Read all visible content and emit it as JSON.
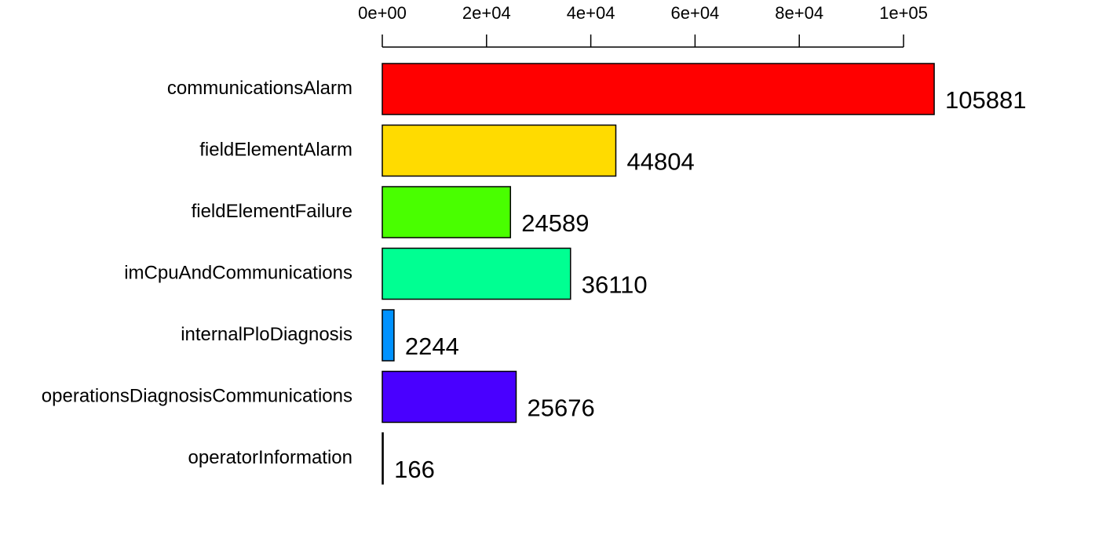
{
  "chart_data": {
    "type": "bar",
    "orientation": "horizontal",
    "categories": [
      "communicationsAlarm",
      "fieldElementAlarm",
      "fieldElementFailure",
      "imCpuAndCommunications",
      "internalPloDiagnosis",
      "operationsDiagnosisCommunications",
      "operatorInformation"
    ],
    "values": [
      105881,
      44804,
      24589,
      36110,
      2244,
      25676,
      166
    ],
    "value_labels": [
      "105881",
      "44804",
      "24589",
      "36110",
      "2244",
      "25676",
      "166"
    ],
    "colors": [
      "#FF0000",
      "#FFDB00",
      "#49FF00",
      "#00FF92",
      "#0092FF",
      "#4900FF",
      "#FF00DB"
    ],
    "x_ticks": [
      0,
      20000,
      40000,
      60000,
      80000,
      100000
    ],
    "x_tick_labels": [
      "0e+00",
      "2e+04",
      "4e+04",
      "6e+04",
      "8e+04",
      "1e+05"
    ],
    "x_axis_position": "top",
    "xlim": [
      0,
      100000
    ],
    "grid": false,
    "legend": "none"
  }
}
